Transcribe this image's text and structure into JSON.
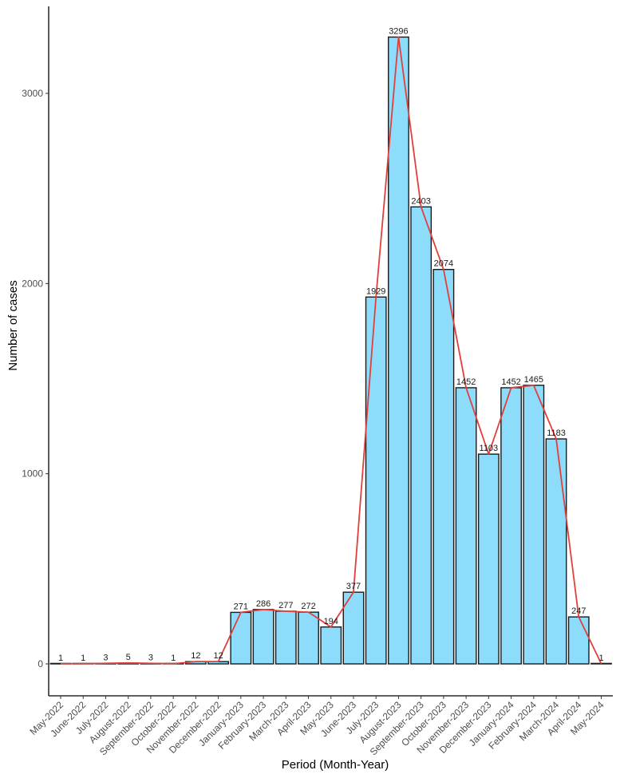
{
  "chart_data": {
    "type": "bar",
    "xlabel": "Period (Month-Year)",
    "ylabel": "Number of cases",
    "ylim": [
      -170,
      3360
    ],
    "yticks": [
      0,
      1000,
      2000,
      3000
    ],
    "grid": false,
    "categories": [
      "May-2022",
      "June-2022",
      "July-2022",
      "August-2022",
      "September-2022",
      "October-2022",
      "November-2022",
      "December-2022",
      "January-2023",
      "February-2023",
      "March-2023",
      "April-2023",
      "May-2023",
      "June-2023",
      "July-2023",
      "August-2023",
      "September-2023",
      "October-2023",
      "November-2023",
      "December-2023",
      "January-2024",
      "February-2024",
      "March-2024",
      "April-2024",
      "May-2024"
    ],
    "values": [
      1,
      1,
      3,
      5,
      3,
      1,
      12,
      12,
      271,
      286,
      277,
      272,
      194,
      377,
      1929,
      3296,
      2403,
      2074,
      1452,
      1103,
      1452,
      1465,
      1183,
      247,
      1
    ],
    "bar_color": "#8ddcfc",
    "bar_edge_color": "#1a1a1a",
    "line_color": "#e0403a",
    "overlay": "line"
  }
}
